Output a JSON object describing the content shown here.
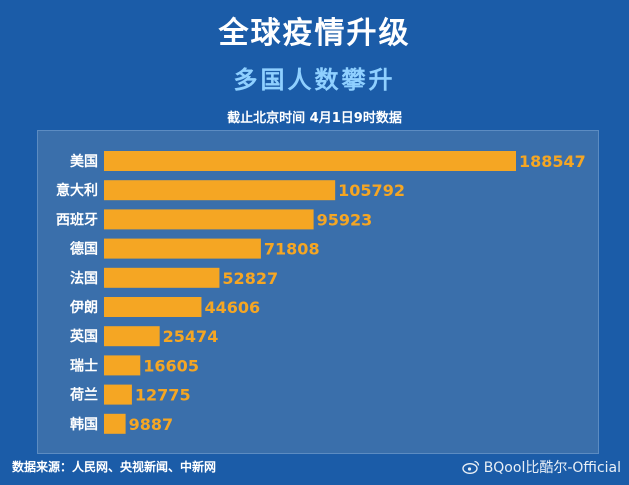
{
  "header": {
    "title": "全球疫情升级",
    "subtitle": "多国人数攀升",
    "note": "截止北京时间 4月1日9时数据"
  },
  "footer": {
    "source": "数据来源：人民网、央视新闻、中新网",
    "watermark": "BQool比酷尔-Official"
  },
  "colors": {
    "background": "#1b5ca8",
    "panel": "#3a6fab",
    "bar": "#f5a623",
    "value": "#f5a623",
    "label": "#ffffff"
  },
  "chart_data": {
    "type": "bar",
    "orientation": "horizontal",
    "title": "全球疫情升级",
    "subtitle": "多国人数攀升",
    "categories": [
      "美国",
      "意大利",
      "西班牙",
      "德国",
      "法国",
      "伊朗",
      "英国",
      "瑞士",
      "荷兰",
      "韩国"
    ],
    "values": [
      188547,
      105792,
      95923,
      71808,
      52827,
      44606,
      25474,
      16605,
      12775,
      9887
    ],
    "xlim": [
      0,
      188547
    ],
    "grid": false,
    "legend": "none"
  }
}
